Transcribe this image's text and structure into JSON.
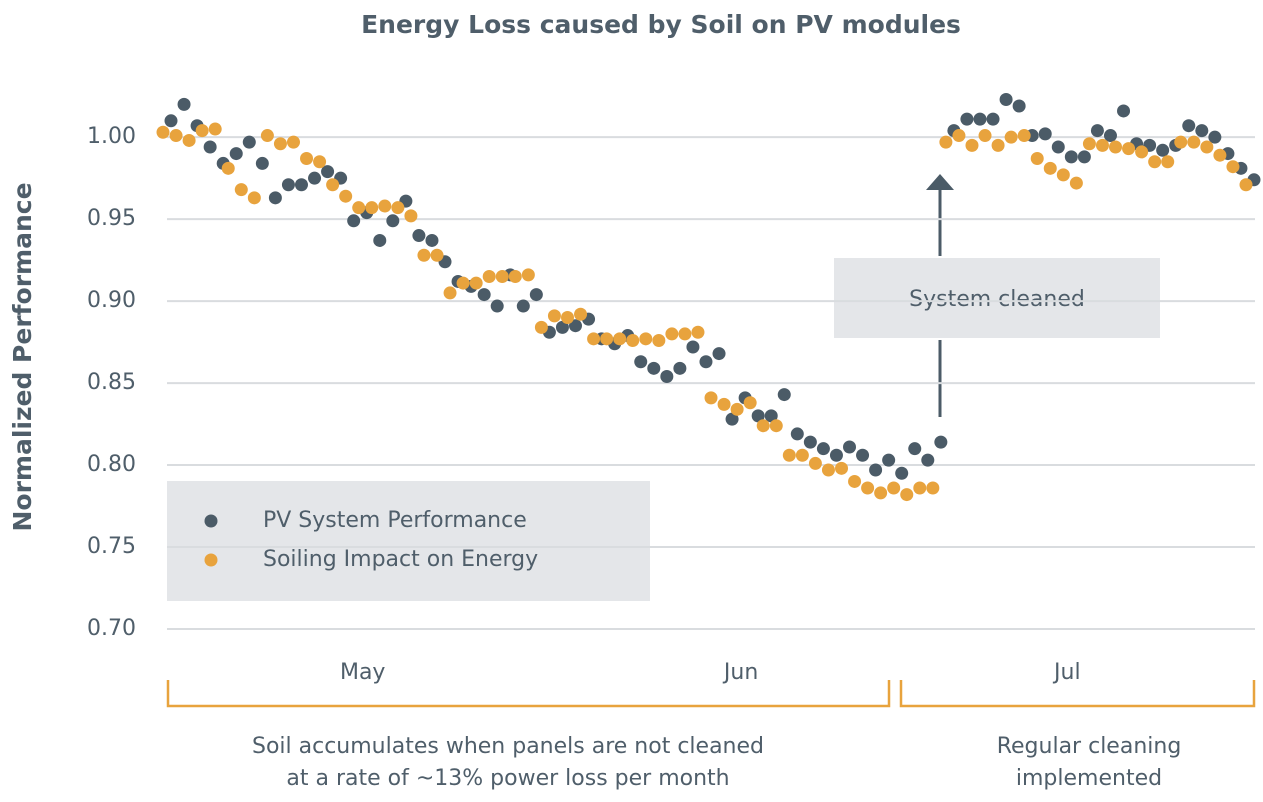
{
  "chart_data": {
    "type": "scatter",
    "title": "Energy Loss caused by Soil on PV modules",
    "y_label": "Normalized Performance",
    "categories": [
      null,
      null,
      null,
      null,
      null,
      null,
      null,
      null,
      null,
      null,
      null,
      null,
      null,
      null,
      null,
      "May",
      null,
      null,
      null,
      null,
      null,
      null,
      null,
      null,
      null,
      null,
      null,
      null,
      null,
      null,
      null,
      null,
      null,
      null,
      null,
      null,
      null,
      null,
      null,
      null,
      null,
      null,
      null,
      null,
      "Jun",
      null,
      null,
      null,
      null,
      null,
      null,
      null,
      null,
      null,
      null,
      null,
      null,
      null,
      null,
      null,
      null,
      null,
      null,
      null,
      null,
      null,
      null,
      null,
      null,
      "Jul",
      null,
      null,
      null,
      null,
      null,
      null,
      null,
      null,
      null,
      null,
      null,
      null,
      null,
      null
    ],
    "series": [
      {
        "name": "PV System Performance",
        "color": "#4b5b67",
        "values": [
          1.01,
          1.02,
          1.007,
          0.994,
          0.984,
          0.99,
          0.997,
          0.984,
          0.963,
          0.971,
          0.971,
          0.975,
          0.979,
          0.975,
          0.949,
          0.954,
          0.937,
          0.949,
          0.961,
          0.94,
          0.937,
          0.924,
          0.912,
          0.909,
          0.904,
          0.897,
          0.916,
          0.897,
          0.904,
          0.881,
          0.884,
          0.885,
          0.889,
          0.877,
          0.874,
          0.879,
          0.863,
          0.859,
          0.854,
          0.859,
          0.872,
          0.863,
          0.868,
          0.828,
          0.841,
          0.83,
          0.83,
          0.843,
          0.819,
          0.814,
          0.81,
          0.806,
          0.811,
          0.806,
          0.797,
          0.803,
          0.795,
          0.81,
          0.803,
          0.814,
          1.004,
          1.011,
          1.011,
          1.011,
          1.023,
          1.019,
          1.001,
          1.002,
          0.994,
          0.988,
          0.988,
          1.004,
          1.001,
          1.016,
          0.996,
          0.995,
          0.992,
          0.995,
          1.007,
          1.004,
          1.0,
          0.99,
          0.981,
          0.974
        ]
      },
      {
        "name": "Soiling Impact on Energy",
        "color": "#e8a33d",
        "values": [
          1.003,
          1.001,
          0.998,
          1.004,
          1.005,
          0.981,
          0.968,
          0.963,
          1.001,
          0.996,
          0.997,
          0.987,
          0.985,
          0.971,
          0.964,
          0.957,
          0.957,
          0.958,
          0.957,
          0.952,
          0.928,
          0.928,
          0.905,
          0.911,
          0.911,
          0.915,
          0.915,
          0.915,
          0.916,
          0.884,
          0.891,
          0.89,
          0.892,
          0.877,
          0.877,
          0.877,
          0.876,
          0.877,
          0.876,
          0.88,
          0.88,
          0.881,
          0.841,
          0.837,
          0.834,
          0.838,
          0.824,
          0.824,
          0.806,
          0.806,
          0.801,
          0.797,
          0.798,
          0.79,
          0.786,
          0.783,
          0.786,
          0.782,
          0.786,
          0.786,
          0.997,
          1.001,
          0.995,
          1.001,
          0.995,
          1.0,
          1.001,
          0.987,
          0.981,
          0.977,
          0.972,
          0.996,
          0.995,
          0.994,
          0.993,
          0.991,
          0.985,
          0.985,
          0.997,
          0.997,
          0.994,
          0.989,
          0.982,
          0.971
        ]
      }
    ],
    "ylim": [
      0.7,
      1.03
    ],
    "yticks": [
      {
        "value": 0.7,
        "label": "0.70"
      },
      {
        "value": 0.75,
        "label": "0.75"
      },
      {
        "value": 0.8,
        "label": "0.80"
      },
      {
        "value": 0.85,
        "label": "0.85"
      },
      {
        "value": 0.9,
        "label": "0.90"
      },
      {
        "value": 0.95,
        "label": "0.95"
      },
      {
        "value": 1.0,
        "label": "1.00"
      }
    ],
    "grid": true,
    "annotations": {
      "cleaned": "System cleaned",
      "left_bracket": [
        "Soil accumulates when panels are not cleaned",
        "at a rate of ~13% power loss per month"
      ],
      "right_bracket": [
        "Regular cleaning",
        "implemented"
      ]
    }
  }
}
